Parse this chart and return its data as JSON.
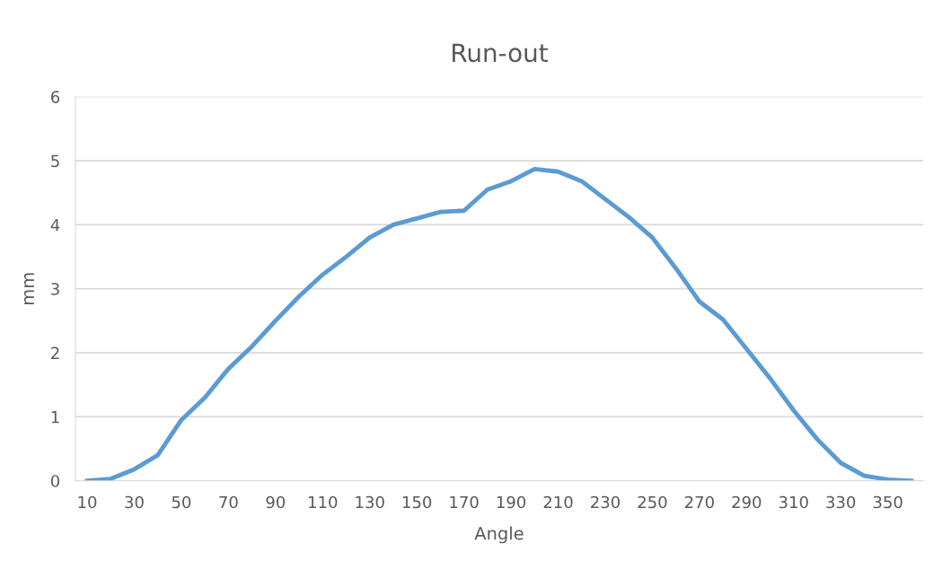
{
  "chart_data": {
    "type": "line",
    "title": "Run-out",
    "xlabel": "Angle",
    "ylabel": "mm",
    "categories": [
      "10",
      null,
      "30",
      null,
      "50",
      null,
      "70",
      null,
      "90",
      null,
      "110",
      null,
      "130",
      null,
      "150",
      null,
      "170",
      null,
      "190",
      null,
      "210",
      null,
      "230",
      null,
      "250",
      null,
      "270",
      null,
      "290",
      null,
      "310",
      null,
      "330",
      null,
      "350",
      null
    ],
    "series": [
      {
        "color": "#5b9bd5",
        "values": [
          0.0,
          0.03,
          0.18,
          0.4,
          0.95,
          1.3,
          1.75,
          2.1,
          2.5,
          2.88,
          3.22,
          3.5,
          3.8,
          4.0,
          4.1,
          4.2,
          4.22,
          4.55,
          4.68,
          4.87,
          4.83,
          4.68,
          4.4,
          4.12,
          3.8,
          3.32,
          2.8,
          2.52,
          2.06,
          1.6,
          1.1,
          0.65,
          0.28,
          0.08,
          0.02,
          0.0
        ]
      }
    ],
    "ylim": [
      0,
      6
    ],
    "yticks": [
      0,
      1,
      2,
      3,
      4,
      5,
      6
    ],
    "grid": "y",
    "line_style": "solid",
    "marker": "none"
  }
}
